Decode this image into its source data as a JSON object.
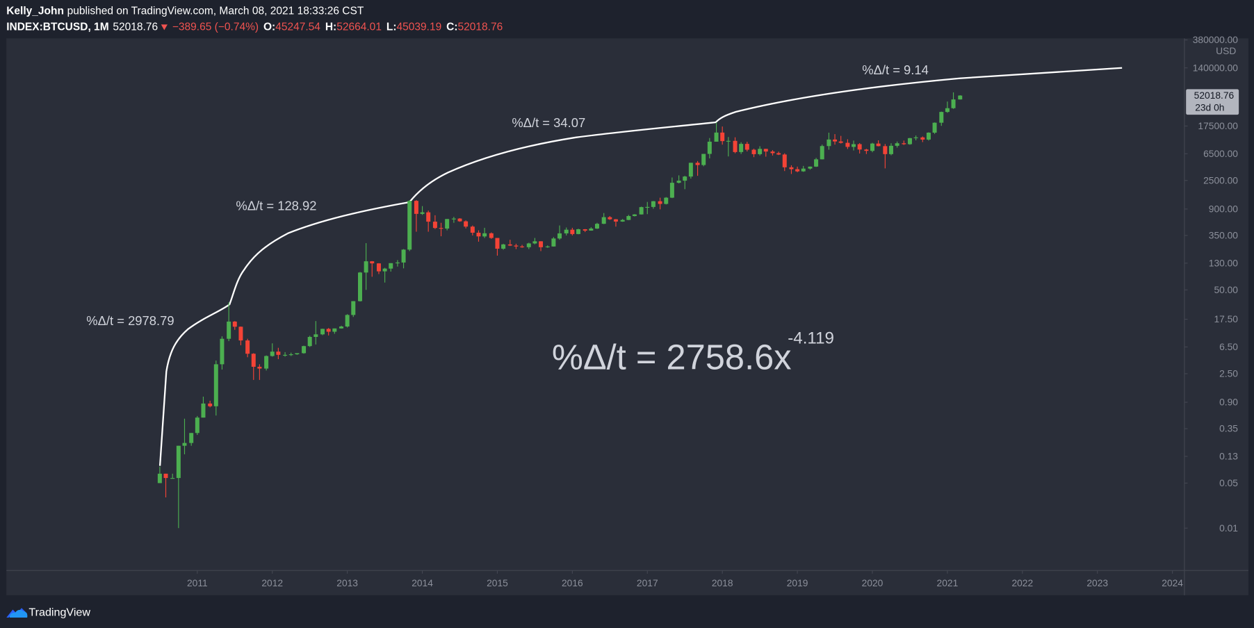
{
  "header": {
    "author": "Kelly_John",
    "published": "published on TradingView.com, March 08, 2021 18:33:26 CST",
    "symbol": "INDEX:BTCUSD, 1M",
    "change": "−389.65 (−0.74%)",
    "ohlc_labels": [
      "O:",
      "H:",
      "L:",
      "C:"
    ]
  },
  "price_label": {
    "countdown": "23d 0h"
  },
  "footer": {
    "brand": "TradingView"
  },
  "chart_data": {
    "type": "candlestick",
    "y_unit": "USD",
    "log_scale": true,
    "up_color": "#4caf50",
    "down_color": "#f44336",
    "xlim": [
      2008.455,
      2024.16
    ],
    "xticks": [
      2011,
      2012,
      2013,
      2014,
      2015,
      2016,
      2017,
      2018,
      2019,
      2020,
      2021,
      2022,
      2023,
      2024
    ],
    "ylim": [
      0.0022,
      402000
    ],
    "yticks": [
      0.01,
      0.05,
      0.13,
      0.35,
      {
        "value": 0.9,
        "label": "0.90"
      },
      {
        "value": 2.5,
        "label": "2.50"
      },
      {
        "value": 6.5,
        "label": "6.50"
      },
      {
        "value": 17.5,
        "label": "17.50"
      },
      {
        "value": 50,
        "label": "50.00"
      },
      {
        "value": 130,
        "label": "130.00"
      },
      {
        "value": 350,
        "label": "350.00"
      },
      {
        "value": 900,
        "label": "900.00"
      },
      {
        "value": 2500,
        "label": "2500.00"
      },
      {
        "value": 6500,
        "label": "6500.00"
      },
      {
        "value": 17500,
        "label": "17500.00"
      },
      {
        "value": 140000,
        "label": "140000.00"
      },
      {
        "value": 380000,
        "label": "380000.00"
      }
    ],
    "x": [
      2010.5,
      2010.58,
      2010.67,
      2010.75,
      2010.83,
      2010.92,
      2011,
      2011.08,
      2011.17,
      2011.25,
      2011.33,
      2011.42,
      2011.5,
      2011.58,
      2011.67,
      2011.75,
      2011.83,
      2011.92,
      2012,
      2012.08,
      2012.17,
      2012.25,
      2012.33,
      2012.42,
      2012.5,
      2012.58,
      2012.67,
      2012.75,
      2012.83,
      2012.92,
      2013,
      2013.08,
      2013.17,
      2013.25,
      2013.33,
      2013.42,
      2013.5,
      2013.58,
      2013.67,
      2013.75,
      2013.83,
      2013.92,
      2014,
      2014.08,
      2014.17,
      2014.25,
      2014.33,
      2014.42,
      2014.5,
      2014.58,
      2014.67,
      2014.75,
      2014.83,
      2014.92,
      2015,
      2015.08,
      2015.17,
      2015.25,
      2015.33,
      2015.42,
      2015.5,
      2015.58,
      2015.67,
      2015.75,
      2015.83,
      2015.92,
      2016,
      2016.08,
      2016.17,
      2016.25,
      2016.33,
      2016.42,
      2016.5,
      2016.58,
      2016.67,
      2016.75,
      2016.83,
      2016.92,
      2017,
      2017.08,
      2017.17,
      2017.25,
      2017.33,
      2017.42,
      2017.5,
      2017.58,
      2017.67,
      2017.75,
      2017.83,
      2017.92,
      2018,
      2018.08,
      2018.17,
      2018.25,
      2018.33,
      2018.42,
      2018.5,
      2018.58,
      2018.67,
      2018.75,
      2018.83,
      2018.92,
      2019,
      2019.08,
      2019.17,
      2019.25,
      2019.33,
      2019.42,
      2019.5,
      2019.58,
      2019.67,
      2019.75,
      2019.83,
      2019.92,
      2020,
      2020.08,
      2020.17,
      2020.25,
      2020.33,
      2020.42,
      2020.5,
      2020.58,
      2020.67,
      2020.75,
      2020.83,
      2020.92,
      2021,
      2021.08,
      2021.17
    ],
    "open": [
      0.05,
      0.07,
      0.06,
      0.06,
      0.19,
      0.21,
      0.3,
      0.52,
      0.86,
      0.78,
      3.5,
      8.7,
      16.1,
      13.4,
      8.2,
      5.1,
      3.2,
      3.0,
      4.7,
      5.5,
      4.9,
      4.9,
      5.0,
      5.2,
      6.7,
      9.3,
      10.2,
      12.4,
      11.2,
      12.6,
      13.5,
      20.4,
      33.4,
      93,
      139,
      129,
      97,
      107,
      130,
      133,
      211,
      1205,
      757,
      800,
      573,
      457,
      448,
      630,
      640,
      580,
      480,
      386,
      338,
      378,
      320,
      218,
      254,
      244,
      236,
      230,
      263,
      284,
      230,
      236,
      314,
      377,
      430,
      368,
      437,
      416,
      448,
      531,
      673,
      624,
      575,
      609,
      700,
      742,
      964,
      970,
      1190,
      1080,
      1350,
      2300,
      2480,
      2875,
      4700,
      4340,
      6460,
      10000,
      13850,
      10200,
      10300,
      6900,
      9240,
      7500,
      6400,
      7730,
      7030,
      6630,
      6320,
      4000,
      3740,
      3460,
      3820,
      4100,
      5320,
      8550,
      10800,
      10080,
      9600,
      8300,
      9150,
      7550,
      7200,
      9350,
      8530,
      6410,
      8630,
      9450,
      9140,
      11350,
      11650,
      10780,
      13800,
      19700,
      28950,
      33100,
      45247.54
    ],
    "high": [
      0.09,
      0.07,
      0.07,
      0.19,
      0.5,
      0.3,
      0.55,
      1.1,
      0.95,
      4.0,
      9.5,
      32,
      16.4,
      13.5,
      8.7,
      5.2,
      3.5,
      4.8,
      7.4,
      6.3,
      5.4,
      5.3,
      5.2,
      6.8,
      9.7,
      16.4,
      12.5,
      12.8,
      12.6,
      13.9,
      21,
      33.5,
      95,
      266,
      140,
      130,
      110,
      130,
      145,
      215,
      1242,
      1238,
      1000,
      850,
      720,
      550,
      630,
      680,
      650,
      600,
      500,
      420,
      460,
      390,
      320,
      260,
      300,
      260,
      250,
      270,
      320,
      285,
      245,
      330,
      500,
      465,
      460,
      445,
      440,
      470,
      550,
      780,
      700,
      630,
      630,
      730,
      750,
      980,
      1160,
      1200,
      1350,
      1380,
      2780,
      3000,
      2950,
      4700,
      5000,
      6470,
      11400,
      19800,
      17200,
      11800,
      11700,
      9800,
      9950,
      7780,
      8500,
      7750,
      7400,
      7000,
      6600,
      4300,
      4100,
      4200,
      4120,
      5600,
      9000,
      13800,
      13100,
      12300,
      10900,
      10400,
      9500,
      7750,
      9600,
      10500,
      9200,
      9450,
      10050,
      10400,
      11450,
      12470,
      12050,
      14000,
      19900,
      29300,
      41950,
      58300,
      52664.01
    ],
    "low": [
      0.05,
      0.03,
      0.06,
      0.01,
      0.14,
      0.19,
      0.28,
      0.52,
      0.75,
      0.56,
      2.9,
      8,
      12,
      6.9,
      4.5,
      2.0,
      2.0,
      2.8,
      4.6,
      4.2,
      4.6,
      4.7,
      4.9,
      5.1,
      6.5,
      7.1,
      9.9,
      9.8,
      10.4,
      12.5,
      13,
      19,
      33,
      50,
      80,
      88,
      65,
      96,
      115,
      108,
      200,
      400,
      730,
      400,
      440,
      340,
      420,
      550,
      570,
      450,
      350,
      280,
      320,
      310,
      170,
      210,
      240,
      215,
      225,
      215,
      255,
      200,
      225,
      235,
      300,
      350,
      350,
      365,
      395,
      415,
      440,
      525,
      610,
      480,
      570,
      605,
      690,
      740,
      750,
      910,
      890,
      1060,
      1330,
      2250,
      1830,
      2670,
      2950,
      4150,
      5500,
      10000,
      9000,
      5900,
      6600,
      6450,
      7050,
      5750,
      6100,
      5850,
      6100,
      6200,
      3500,
      3150,
      3350,
      3400,
      3680,
      4050,
      5300,
      7500,
      9000,
      9350,
      7700,
      7300,
      6550,
      6430,
      6850,
      8450,
      3850,
      6150,
      8100,
      8900,
      8950,
      10500,
      9850,
      10400,
      13200,
      17600,
      28100,
      32300,
      45039.19
    ],
    "close": [
      0.07,
      0.06,
      0.06,
      0.19,
      0.21,
      0.3,
      0.52,
      0.86,
      0.78,
      3.5,
      8.7,
      16.1,
      13.4,
      8.2,
      5.1,
      3.2,
      3.0,
      4.7,
      5.5,
      4.9,
      4.9,
      5.0,
      5.2,
      6.7,
      9.3,
      10.2,
      12.4,
      11.2,
      12.6,
      13.5,
      20.4,
      33.4,
      93,
      139,
      129,
      97,
      107,
      130,
      133,
      211,
      1205,
      757,
      800,
      573,
      457,
      448,
      630,
      640,
      580,
      480,
      386,
      338,
      378,
      320,
      218,
      254,
      244,
      236,
      230,
      263,
      284,
      230,
      236,
      314,
      377,
      430,
      368,
      437,
      416,
      448,
      531,
      673,
      624,
      575,
      609,
      700,
      742,
      964,
      970,
      1190,
      1080,
      1350,
      2300,
      2480,
      2875,
      4700,
      4340,
      6460,
      10000,
      13850,
      10200,
      10300,
      6900,
      9240,
      7500,
      6400,
      7730,
      7030,
      6630,
      6320,
      4000,
      3740,
      3460,
      3820,
      4100,
      5320,
      8550,
      10800,
      10080,
      9600,
      8300,
      9150,
      7550,
      7200,
      9350,
      8530,
      6410,
      8630,
      9450,
      9140,
      11350,
      11650,
      10780,
      13800,
      19700,
      28950,
      33100,
      45247.54,
      52018.76
    ],
    "annotations": [
      "%Δ/t = 2978.79",
      "%Δ/t = 128.92",
      "%Δ/t = 34.07",
      "%Δ/t = 9.14"
    ],
    "formula": "%Δ/t = 2758.6x",
    "formula_exponent": "-4.119"
  }
}
